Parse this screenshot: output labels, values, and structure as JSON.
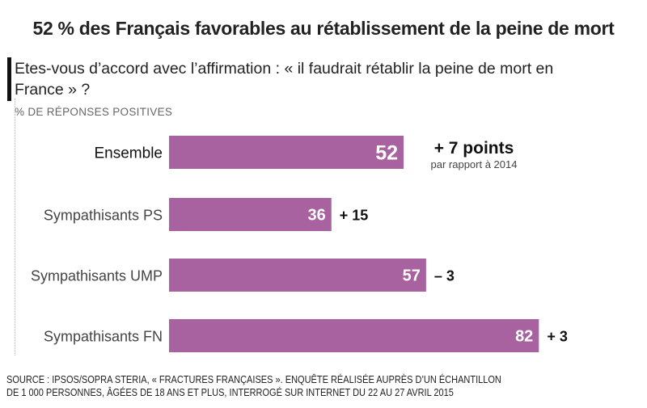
{
  "title": "52 % des Français favorables au rétablissement de la peine de mort",
  "question": "Etes-vous d’accord avec l’affirmation : « il faudrait rétablir la peine de mort en France » ?",
  "unit": "% DE RÉPONSES POSITIVES",
  "source": [
    "SOURCE : IPSOS/SOPRA STERIA, « FRACTURES FRANÇAISES ». ENQUÊTE RÉALISÉE AUPRÈS D’UN ÉCHANTILLON",
    "DE 1 000 PERSONNES, ÂGÉES DE 18 ANS ET PLUS, INTERROGÉ SUR INTERNET DU 22 AU 27 AVRIL 2015"
  ],
  "chart_data": {
    "type": "bar",
    "orientation": "horizontal",
    "categories": [
      "Ensemble",
      "Sympathisants PS",
      "Sympathisants UMP",
      "Sympathisants FN"
    ],
    "values": [
      52,
      36,
      57,
      82
    ],
    "changes": [
      "+ 7 points",
      "+ 15",
      "– 3",
      "+ 3"
    ],
    "change_note": "par rapport à 2014",
    "xlim": [
      0,
      100
    ],
    "bar_color": "#a8629f",
    "grid": false
  }
}
